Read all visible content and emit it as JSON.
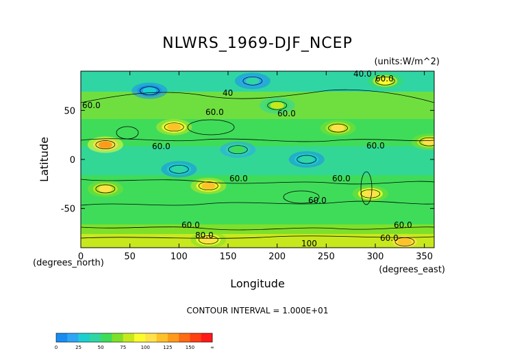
{
  "chart_data": {
    "type": "heatmap",
    "title": "NLWRS_1969-DJF_NCEP",
    "units": "(units:W/m^2)",
    "xlabel": "Longitude",
    "ylabel": "Latitude",
    "x_unit_note": "(degrees_east)",
    "y_unit_note": "(degrees_north)",
    "xlim": [
      0,
      360
    ],
    "ylim": [
      -90,
      90
    ],
    "x_ticks": [
      0,
      50,
      100,
      150,
      200,
      250,
      300,
      350
    ],
    "y_ticks": [
      50,
      0,
      -50
    ],
    "contour_interval_text": "CONTOUR INTERVAL = 1.000E+01",
    "contour_labels": [
      "40.0",
      "60.0",
      "60.0",
      "40",
      "60.0",
      "60.0",
      "60.0",
      "60.0",
      "60.0",
      "60.0",
      "60.0",
      "60.0",
      "60.0",
      "80.0",
      "100",
      "60.0"
    ],
    "colorbar": {
      "tick_labels": [
        "0",
        "25",
        "50",
        "75",
        "100",
        "125",
        "150",
        "∞"
      ],
      "colors": [
        "#1a8cf0",
        "#2ea6f5",
        "#1ccfcf",
        "#2fd6a4",
        "#3fdc5a",
        "#7fe02a",
        "#c8e81e",
        "#fbfb2e",
        "#ffe14a",
        "#ffc128",
        "#ff9a1a",
        "#ff6a14",
        "#ff4010",
        "#ff1a1a"
      ]
    },
    "regions": [
      {
        "lon": 25,
        "lat": 15,
        "value": 125
      },
      {
        "lon": 95,
        "lat": 33,
        "value": 115
      },
      {
        "lon": 130,
        "lat": -27,
        "value": 115
      },
      {
        "lon": 295,
        "lat": -35,
        "value": 110
      },
      {
        "lon": 262,
        "lat": 32,
        "value": 100
      },
      {
        "lon": 355,
        "lat": 18,
        "value": 100
      },
      {
        "lon": 25,
        "lat": -30,
        "value": 100
      },
      {
        "lon": 200,
        "lat": 55,
        "value": 75
      },
      {
        "lon": 160,
        "lat": 10,
        "value": 60
      },
      {
        "lon": 230,
        "lat": 0,
        "value": 45
      },
      {
        "lon": 100,
        "lat": -10,
        "value": 45
      },
      {
        "lon": 70,
        "lat": 70,
        "value": 30
      },
      {
        "lon": 175,
        "lat": 80,
        "value": 40
      },
      {
        "lon": 130,
        "lat": -82,
        "value": 110
      },
      {
        "lon": 330,
        "lat": -84,
        "value": 120
      },
      {
        "lon": 310,
        "lat": 80,
        "value": 95
      }
    ]
  }
}
